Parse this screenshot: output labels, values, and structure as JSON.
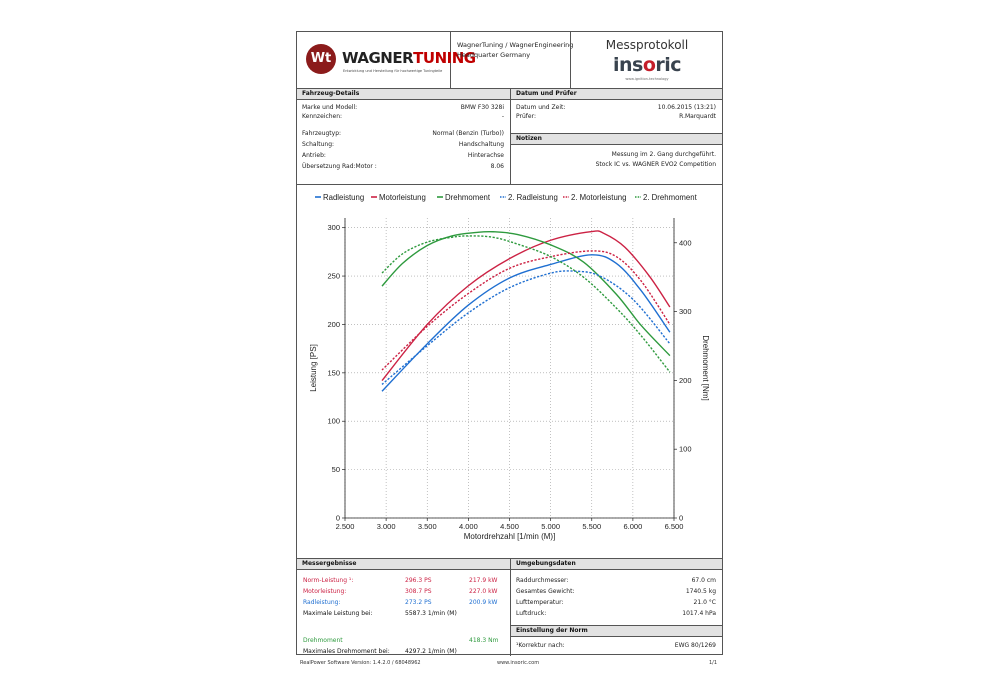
{
  "header": {
    "logo_text_a": "WAGNER",
    "logo_text_b": "TUNING",
    "logo_badge": "Wt",
    "logo_tagline": "Entwicklung und Herstellung für hochwertige Tuningteile",
    "company_line1": "WagnerTuning / WagnerEngineering",
    "company_line2": "Headquarter Germany",
    "report_title": "Messprotokoll",
    "brand_a": "ins",
    "brand_o": "o",
    "brand_b": "ric",
    "brand_tagline": "www.ignition-technology"
  },
  "vehicle": {
    "section_title": "Fahrzeug-Details",
    "rows": [
      {
        "label": "Marke und Modell:",
        "value": "BMW F30 328i"
      },
      {
        "label": "Kennzeichen:",
        "value": "-"
      },
      {
        "label": "Fahrzeugtyp:",
        "value": "Normal (Benzin (Turbo))"
      },
      {
        "label": "Schaltung:",
        "value": "Handschaltung"
      },
      {
        "label": "Antrieb:",
        "value": "Hinterachse"
      },
      {
        "label": "Übersetzung Rad:Motor :",
        "value": "8.06"
      }
    ]
  },
  "date": {
    "section_title": "Datum und Prüfer",
    "rows": [
      {
        "label": "Datum und Zeit:",
        "value": "10.06.2015 (13:21)"
      },
      {
        "label": "Prüfer:",
        "value": "R.Marquardt"
      }
    ]
  },
  "notes": {
    "section_title": "Notizen",
    "line1": "Messung im 2. Gang durchgeführt.",
    "line2": "Stock IC vs. WAGNER EVO2 Competition"
  },
  "chart_data": {
    "type": "line",
    "xlabel": "Motordrehzahl [1/min (M)]",
    "ylabel": "Leistung [PS]",
    "y2label": "Drehmoment [Nm]",
    "xlim": [
      2500,
      6500
    ],
    "ylim": [
      0,
      310
    ],
    "y2lim": [
      0,
      436
    ],
    "x_ticks": [
      2500,
      3000,
      3500,
      4000,
      4500,
      5000,
      5500,
      6000,
      6500
    ],
    "x_tick_labels": [
      "2.500",
      "3.000",
      "3.500",
      "4.000",
      "4.500",
      "5.000",
      "5.500",
      "6.000",
      "6.500"
    ],
    "y_ticks": [
      0,
      50,
      100,
      150,
      200,
      250,
      300
    ],
    "y_tick_labels": [
      "0",
      "50",
      "100",
      "150",
      "200",
      "250",
      "300"
    ],
    "y2_ticks": [
      0,
      100,
      200,
      300,
      400
    ],
    "y2_tick_labels": [
      "0",
      "100",
      "200",
      "300",
      "400"
    ],
    "grid": true,
    "legend_position": "top",
    "series": [
      {
        "name": "Radleistung",
        "axis": "left",
        "color": "#1f6fd1",
        "dash": false,
        "x": [
          2950,
          3500,
          4000,
          4500,
          5000,
          5500,
          5800,
          6100,
          6450
        ],
        "y": [
          131,
          180,
          220,
          248,
          262,
          272,
          263,
          235,
          192
        ]
      },
      {
        "name": "Motorleistung",
        "axis": "left",
        "color": "#cc2244",
        "dash": false,
        "x": [
          2950,
          3500,
          4000,
          4500,
          5000,
          5500,
          5650,
          5900,
          6200,
          6450
        ],
        "y": [
          142,
          200,
          240,
          268,
          287,
          296,
          294,
          280,
          250,
          218
        ]
      },
      {
        "name": "Drehmoment",
        "axis": "right",
        "color": "#2e9a3e",
        "dash": false,
        "x": [
          2950,
          3200,
          3500,
          3800,
          4100,
          4300,
          4600,
          5000,
          5400,
          5800,
          6100,
          6450
        ],
        "y": [
          337,
          370,
          396,
          410,
          415,
          416,
          412,
          397,
          372,
          325,
          280,
          236
        ]
      },
      {
        "name": "2. Radleistung",
        "axis": "left",
        "color": "#1f6fd1",
        "dash": true,
        "x": [
          2950,
          3500,
          4000,
          4500,
          5000,
          5300,
          5600,
          6000,
          6450
        ],
        "y": [
          138,
          178,
          212,
          238,
          253,
          255,
          250,
          226,
          180
        ]
      },
      {
        "name": "2. Motorleistung",
        "axis": "left",
        "color": "#cc2244",
        "dash": true,
        "x": [
          2950,
          3500,
          4000,
          4500,
          5000,
          5500,
          5800,
          6100,
          6450
        ],
        "y": [
          153,
          198,
          232,
          258,
          270,
          276,
          270,
          245,
          200
        ]
      },
      {
        "name": "2. Drehmoment",
        "axis": "right",
        "color": "#2e9a3e",
        "dash": true,
        "x": [
          2950,
          3200,
          3500,
          3800,
          4000,
          4300,
          4600,
          5000,
          5400,
          5800,
          6100,
          6450
        ],
        "y": [
          356,
          384,
          401,
          408,
          410,
          408,
          398,
          380,
          350,
          305,
          265,
          212
        ]
      }
    ]
  },
  "results": {
    "section_title": "Messergebnisse",
    "norm_label": "Norm-Leistung ¹:",
    "norm_ps": "296.3 PS",
    "norm_kw": "217.9 kW",
    "motor_label": "Motorleistung:",
    "motor_ps": "308.7 PS",
    "motor_kw": "227.0 kW",
    "rad_label": "Radleistung:",
    "rad_ps": "273.2 PS",
    "rad_kw": "200.9 kW",
    "max_power_label": "Maximale Leistung bei:",
    "max_power_value": "5587.3 1/min (M)",
    "torque_label": "Drehmoment",
    "torque_value": "418.3 Nm",
    "max_torque_label": "Maximales Drehmoment bei:",
    "max_torque_value": "4297.2 1/min (M)",
    "colors": {
      "norm": "#cc2244",
      "motor": "#cc2244",
      "rad": "#1f6fd1",
      "torque": "#2e9a3e"
    }
  },
  "environment": {
    "section_title": "Umgebungsdaten",
    "rows": [
      {
        "label": "Raddurchmesser:",
        "value": "67.0 cm"
      },
      {
        "label": "Gesamtes Gewicht:",
        "value": "1740.5 kg"
      },
      {
        "label": "Lufttemperatur:",
        "value": "21.0 °C"
      },
      {
        "label": "Luftdruck:",
        "value": "1017.4 hPa"
      }
    ]
  },
  "norm": {
    "section_title": "Einstellung der Norm",
    "label": "¹Korrektur nach:",
    "value": "EWG 80/1269"
  },
  "footer": {
    "software": "RealPower Software Version: 1.4.2.0 / 68048962",
    "website": "www.insoric.com",
    "page": "1/1"
  }
}
